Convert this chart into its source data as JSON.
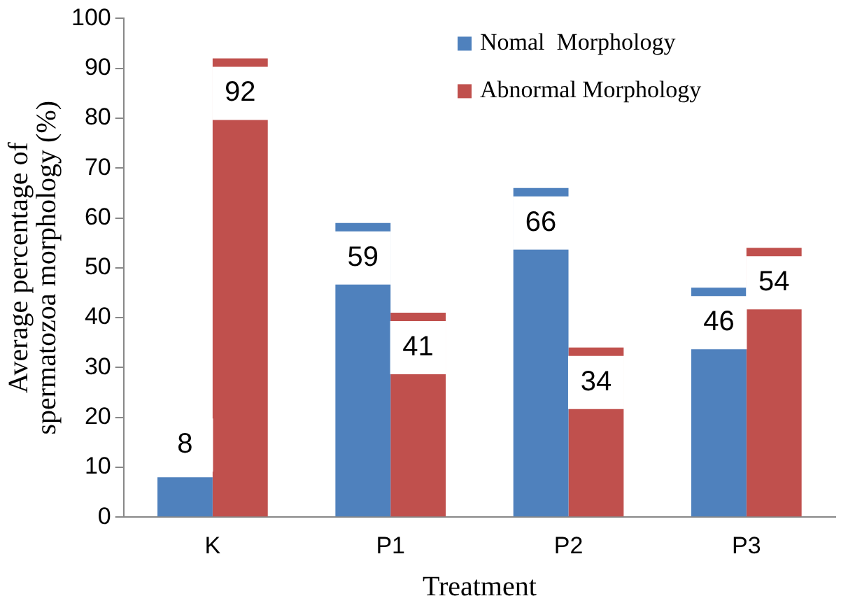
{
  "chart_data": {
    "type": "bar",
    "xlabel": "Treatment",
    "ylabel": "Average percentage of spermatozoa morphology (%)",
    "categories": [
      "K",
      "P1",
      "P2",
      "P3"
    ],
    "series": [
      {
        "name": "Nomal  Morphology",
        "color": "#4f81bd",
        "values": [
          8,
          59,
          66,
          46
        ]
      },
      {
        "name": "Abnormal Morphology",
        "color": "#c0504d",
        "values": [
          92,
          41,
          34,
          54
        ]
      }
    ],
    "ylim": [
      0,
      100
    ],
    "yticks": [
      0,
      10,
      20,
      30,
      40,
      50,
      60,
      70,
      80,
      90,
      100
    ],
    "grid": false,
    "legend": "top right",
    "data_labels": true
  }
}
